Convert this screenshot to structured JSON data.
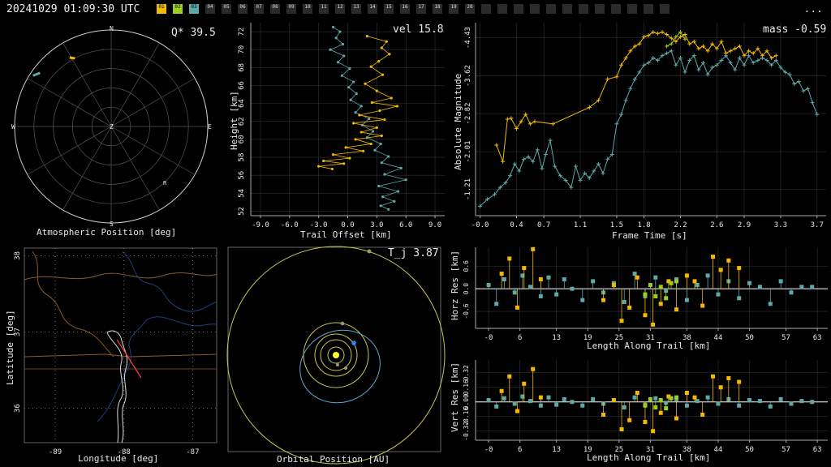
{
  "header": {
    "title": "20241029 01:09:30 UTC",
    "menu_label": "...",
    "stations": [
      {
        "id": "01",
        "active": true,
        "color": "#f5b800"
      },
      {
        "id": "02",
        "active": true,
        "color": "#9ccf1e"
      },
      {
        "id": "03",
        "active": true,
        "color": "#5fa8a8"
      },
      {
        "id": "04",
        "active": false
      },
      {
        "id": "05",
        "active": false
      },
      {
        "id": "06",
        "active": false
      },
      {
        "id": "07",
        "active": false
      },
      {
        "id": "08",
        "active": false
      },
      {
        "id": "09",
        "active": false
      },
      {
        "id": "10",
        "active": false
      },
      {
        "id": "11",
        "active": false
      },
      {
        "id": "12",
        "active": false
      },
      {
        "id": "13",
        "active": false
      },
      {
        "id": "14",
        "active": false
      },
      {
        "id": "15",
        "active": false
      },
      {
        "id": "16",
        "active": false
      },
      {
        "id": "17",
        "active": false
      },
      {
        "id": "18",
        "active": false
      },
      {
        "id": "19",
        "active": false
      },
      {
        "id": "20",
        "active": false
      },
      {
        "id": "",
        "active": false
      },
      {
        "id": "",
        "active": false
      },
      {
        "id": "",
        "active": false
      },
      {
        "id": "",
        "active": false
      },
      {
        "id": "",
        "active": false
      },
      {
        "id": "",
        "active": false
      },
      {
        "id": "",
        "active": false
      },
      {
        "id": "",
        "active": false
      },
      {
        "id": "",
        "active": false
      },
      {
        "id": "",
        "active": false
      },
      {
        "id": "",
        "active": false
      },
      {
        "id": "",
        "active": false
      }
    ]
  },
  "colors": {
    "st1": "#f5b800",
    "st2": "#9ccf1e",
    "st3": "#5fa8a8",
    "grid": "#555555",
    "fit": "#ffffff"
  },
  "chart_data": [
    {
      "type": "polar",
      "xlabel": "Atmospheric Position [deg]",
      "annotation": "Q* 39.5",
      "direction_labels": [
        "N",
        "E",
        "S",
        "W",
        "Z"
      ],
      "marker_label": "R",
      "tracks": [
        {
          "station": "01",
          "azimuth": [
            -31,
            -28
          ],
          "zenith": [
            75,
            72
          ]
        },
        {
          "station": "03",
          "azimuth": [
            -57,
            -53
          ],
          "zenith": [
            87,
            83
          ]
        }
      ]
    },
    {
      "type": "scatter",
      "xlabel": "Trail Offset [km]",
      "ylabel": "Height [km]",
      "annotation": "vel 15.8",
      "xticks": [
        "-9.0",
        "-6.0",
        "-3.0",
        "0.0",
        "3.0",
        "6.0",
        "9.0"
      ],
      "yticks": [
        "52",
        "54",
        "56",
        "58",
        "60",
        "62",
        "64",
        "66",
        "68",
        "70",
        "72"
      ],
      "xlim": [
        -10,
        10
      ],
      "ylim": [
        51.5,
        73
      ],
      "series": [
        {
          "station": "03",
          "x": [
            -1.5,
            -0.8,
            -1.2,
            -0.5,
            -1.8,
            -0.4,
            -1.0,
            0.2,
            -0.6,
            0.6,
            0.1,
            0.9,
            0.3,
            1.4,
            0.8,
            2.2,
            1.5,
            2.6,
            2.0,
            3.4,
            2.8,
            4.2,
            3.5,
            5.5,
            3.8,
            6.0,
            3.2,
            5.2,
            3.6,
            4.8,
            3.4,
            4.2
          ],
          "y": [
            72.5,
            72.0,
            71.3,
            70.6,
            70.0,
            69.3,
            68.6,
            67.9,
            67.1,
            66.4,
            65.8,
            65.1,
            64.4,
            63.7,
            63.0,
            62.3,
            61.6,
            60.9,
            60.2,
            59.5,
            58.8,
            58.1,
            57.4,
            56.8,
            56.1,
            55.5,
            54.8,
            54.2,
            53.6,
            53.1,
            52.6,
            52.2
          ]
        },
        {
          "station": "01",
          "x": [
            2.0,
            4.0,
            3.5,
            4.3,
            3.2,
            2.4,
            3.6,
            1.8,
            3.0,
            4.5,
            2.5,
            5.1,
            3.3,
            1.2,
            3.8,
            0.6,
            3.0,
            1.4,
            3.5,
            0.8,
            2.4,
            -0.2,
            1.6,
            -1.5,
            0.2,
            -2.5,
            -0.4,
            -3.0,
            -1.6
          ],
          "y": [
            71.5,
            70.9,
            70.2,
            69.5,
            68.7,
            68.1,
            67.2,
            66.2,
            65.4,
            64.6,
            64.1,
            63.7,
            63.2,
            62.7,
            62.2,
            61.8,
            61.3,
            60.8,
            60.4,
            60.0,
            59.5,
            59.1,
            58.7,
            58.3,
            57.9,
            57.6,
            57.3,
            57.0,
            56.7
          ]
        }
      ]
    },
    {
      "type": "line",
      "xlabel": "Frame Time [s]",
      "ylabel": "Absolute Magnitude",
      "annotation": "mass -0.59",
      "xticks": [
        "-0.0",
        "0.4",
        "0.7",
        "1.1",
        "1.5",
        "1.8",
        "2.2",
        "2.6",
        "2.9",
        "3.3",
        "3.7"
      ],
      "yticks": [
        "-1.21",
        "-2.01",
        "-2.82",
        "-3.62",
        "-4.43"
      ],
      "xlim": [
        -0.05,
        3.8
      ],
      "ylim": [
        -0.65,
        -4.75
      ],
      "series": [
        {
          "station": "03",
          "x": [
            0.0,
            0.08,
            0.16,
            0.22,
            0.28,
            0.33,
            0.38,
            0.43,
            0.48,
            0.53,
            0.58,
            0.63,
            0.68,
            0.72,
            0.77,
            0.82,
            0.88,
            0.94,
            1.0,
            1.05,
            1.1,
            1.15,
            1.2,
            1.25,
            1.3,
            1.35,
            1.4,
            1.45,
            1.5,
            1.55,
            1.6,
            1.65,
            1.7,
            1.75,
            1.8,
            1.85,
            1.9,
            1.95,
            2.0,
            2.05,
            2.1,
            2.15,
            2.2,
            2.25,
            2.3,
            2.35,
            2.4,
            2.45,
            2.5,
            2.55,
            2.6,
            2.65,
            2.7,
            2.75,
            2.8,
            2.85,
            2.9,
            2.95,
            3.0,
            3.05,
            3.1,
            3.15,
            3.2,
            3.25,
            3.3,
            3.35,
            3.4,
            3.45,
            3.5,
            3.55,
            3.6,
            3.65,
            3.7
          ],
          "y": [
            -0.85,
            -1.0,
            -1.1,
            -1.25,
            -1.35,
            -1.5,
            -1.75,
            -1.6,
            -1.85,
            -1.9,
            -1.8,
            -2.05,
            -1.65,
            -1.95,
            -2.25,
            -1.7,
            -1.5,
            -1.4,
            -1.25,
            -1.7,
            -1.4,
            -1.55,
            -1.45,
            -1.6,
            -1.75,
            -1.55,
            -1.85,
            -1.95,
            -2.6,
            -2.8,
            -3.1,
            -3.35,
            -3.55,
            -3.7,
            -3.85,
            -3.9,
            -4.0,
            -3.95,
            -4.05,
            -4.1,
            -4.15,
            -3.85,
            -4.0,
            -3.7,
            -3.95,
            -4.05,
            -3.75,
            -3.9,
            -3.65,
            -3.8,
            -3.85,
            -3.95,
            -4.05,
            -3.9,
            -3.75,
            -4.0,
            -3.85,
            -4.05,
            -3.9,
            -3.95,
            -4.0,
            -3.95,
            -3.85,
            -3.95,
            -3.8,
            -3.7,
            -3.65,
            -3.45,
            -3.5,
            -3.3,
            -3.35,
            -3.05,
            -2.8
          ]
        },
        {
          "station": "01",
          "x": [
            0.18,
            0.25,
            0.3,
            0.34,
            0.4,
            0.45,
            0.5,
            0.55,
            0.6,
            0.8,
            1.2,
            1.3,
            1.4,
            1.5,
            1.55,
            1.6,
            1.65,
            1.7,
            1.75,
            1.8,
            1.85,
            1.9,
            1.95,
            2.0,
            2.05,
            2.1,
            2.15,
            2.2,
            2.25,
            2.3,
            2.35,
            2.4,
            2.45,
            2.5,
            2.55,
            2.6,
            2.65,
            2.7,
            2.75,
            2.8,
            2.85,
            2.9,
            2.95,
            3.0,
            3.05,
            3.1,
            3.15,
            3.2,
            3.25
          ],
          "y": [
            -2.15,
            -1.8,
            -2.7,
            -2.72,
            -2.5,
            -2.65,
            -2.8,
            -2.6,
            -2.65,
            -2.6,
            -2.95,
            -3.1,
            -3.55,
            -3.6,
            -3.85,
            -4.0,
            -4.15,
            -4.25,
            -4.3,
            -4.45,
            -4.48,
            -4.55,
            -4.52,
            -4.55,
            -4.5,
            -4.42,
            -4.35,
            -4.45,
            -4.5,
            -4.3,
            -4.35,
            -4.2,
            -4.25,
            -4.15,
            -4.3,
            -4.2,
            -4.35,
            -4.1,
            -4.15,
            -4.2,
            -4.25,
            -4.05,
            -4.15,
            -4.1,
            -4.2,
            -4.05,
            -4.15,
            -4.0,
            -4.05
          ]
        },
        {
          "station": "02",
          "x": [
            2.05,
            2.1,
            2.15,
            2.2,
            2.25
          ],
          "y": [
            -4.25,
            -4.3,
            -4.45,
            -4.55,
            -4.4
          ]
        }
      ]
    },
    {
      "type": "map",
      "xlabel": "Longitude [deg]",
      "ylabel": "Latitude [deg]",
      "xticks": [
        "-89",
        "-88",
        "-87"
      ],
      "yticks": [
        "38",
        "37",
        "36"
      ],
      "xlim": [
        -89.45,
        -86.65
      ],
      "ylim": [
        35.55,
        38.1
      ],
      "ground_track": {
        "lon": [
          -88.1,
          -87.75
        ],
        "lat": [
          36.9,
          36.4
        ]
      }
    },
    {
      "type": "orbit",
      "xlabel": "Orbital Position [AU]",
      "annotation": "T_j 3.87"
    },
    {
      "type": "scatter",
      "xlabel": "Length Along Trail [km]",
      "ylabel": "Horz Res [km]",
      "xticks": [
        "-0",
        "6",
        "13",
        "19",
        "25",
        "31",
        "38",
        "44",
        "50",
        "57",
        "63"
      ],
      "yticks": [
        "0.6",
        "0.0",
        "-0.6"
      ],
      "xlim": [
        -2.5,
        65
      ],
      "ylim": [
        -1.05,
        1.1
      ],
      "series": [
        {
          "station": "03",
          "x": [
            0,
            1.5,
            3,
            5,
            6.5,
            8,
            10,
            11.5,
            13,
            14.5,
            16,
            18,
            20,
            22,
            24,
            26,
            28,
            30,
            32,
            34,
            36,
            38,
            40,
            42,
            44,
            46,
            48,
            50,
            52,
            54,
            56,
            58,
            60,
            62
          ],
          "y": [
            0.1,
            -0.4,
            0.25,
            -0.1,
            0.35,
            0.05,
            -0.2,
            0.3,
            -0.15,
            0.25,
            0.0,
            -0.3,
            0.2,
            -0.1,
            0.15,
            -0.35,
            0.4,
            -0.2,
            0.3,
            -0.05,
            0.25,
            -0.3,
            0.1,
            0.35,
            -0.15,
            0.2,
            -0.25,
            0.15,
            0.05,
            -0.4,
            0.2,
            -0.1,
            0.05,
            0.05
          ]
        },
        {
          "station": "01",
          "x": [
            2.5,
            4,
            5.5,
            6.8,
            8.5,
            10,
            22,
            24,
            25.5,
            27,
            28.5,
            30,
            31.5,
            33,
            34.5,
            36,
            38,
            39.5,
            41,
            43,
            44.5,
            46,
            48
          ],
          "y": [
            0.4,
            0.8,
            -0.5,
            0.55,
            1.05,
            0.25,
            -0.3,
            0.1,
            -0.85,
            -0.5,
            0.3,
            -0.7,
            -0.95,
            -0.4,
            0.2,
            -0.55,
            0.35,
            0.2,
            -0.45,
            0.85,
            0.5,
            0.75,
            0.55
          ]
        },
        {
          "station": "02",
          "x": [
            30,
            31,
            32,
            33,
            34,
            35,
            36
          ],
          "y": [
            -0.15,
            0.1,
            -0.2,
            0.05,
            -0.25,
            0.15,
            0.2
          ]
        }
      ]
    },
    {
      "type": "scatter",
      "xlabel": "Length Along Trail [km]",
      "ylabel": "Vert Res [km]",
      "xticks": [
        "-0",
        "6",
        "13",
        "19",
        "25",
        "31",
        "38",
        "44",
        "50",
        "57",
        "63"
      ],
      "yticks": [
        "0.32",
        "0.16",
        "0.00",
        "-0.16",
        "-0.32"
      ],
      "xlim": [
        -2.5,
        65
      ],
      "ylim": [
        -0.42,
        0.46
      ],
      "series": [
        {
          "station": "03",
          "x": [
            0,
            1.5,
            3,
            5,
            6.5,
            8,
            10,
            11.5,
            13,
            14.5,
            16,
            18,
            20,
            22,
            24,
            26,
            28,
            30,
            32,
            34,
            36,
            38,
            40,
            42,
            44,
            46,
            48,
            50,
            52,
            54,
            56,
            58,
            60,
            62
          ],
          "y": [
            0.02,
            -0.05,
            0.04,
            -0.02,
            0.06,
            0.01,
            -0.04,
            0.05,
            -0.03,
            0.03,
            0.0,
            -0.04,
            0.03,
            -0.02,
            0.02,
            -0.06,
            0.05,
            -0.03,
            0.04,
            -0.01,
            0.03,
            -0.04,
            0.01,
            0.05,
            -0.02,
            0.03,
            -0.04,
            0.02,
            0.01,
            -0.05,
            0.03,
            -0.02,
            0.01,
            0.0
          ]
        },
        {
          "station": "01",
          "x": [
            2.5,
            4,
            5.5,
            6.8,
            8.5,
            10,
            22,
            24,
            25.5,
            27,
            28.5,
            30,
            31.5,
            33,
            34.5,
            36,
            38,
            39.5,
            41,
            43,
            44.5,
            46,
            48
          ],
          "y": [
            0.12,
            0.28,
            -0.1,
            0.2,
            0.36,
            0.05,
            -0.14,
            0.02,
            -0.3,
            -0.2,
            0.1,
            -0.22,
            -0.32,
            -0.12,
            0.06,
            -0.18,
            0.1,
            0.05,
            -0.14,
            0.28,
            0.16,
            0.26,
            0.22
          ]
        },
        {
          "station": "02",
          "x": [
            30,
            31,
            32,
            33,
            34,
            35,
            36
          ],
          "y": [
            -0.04,
            0.03,
            -0.06,
            0.02,
            -0.07,
            0.04,
            0.05
          ]
        }
      ]
    }
  ]
}
